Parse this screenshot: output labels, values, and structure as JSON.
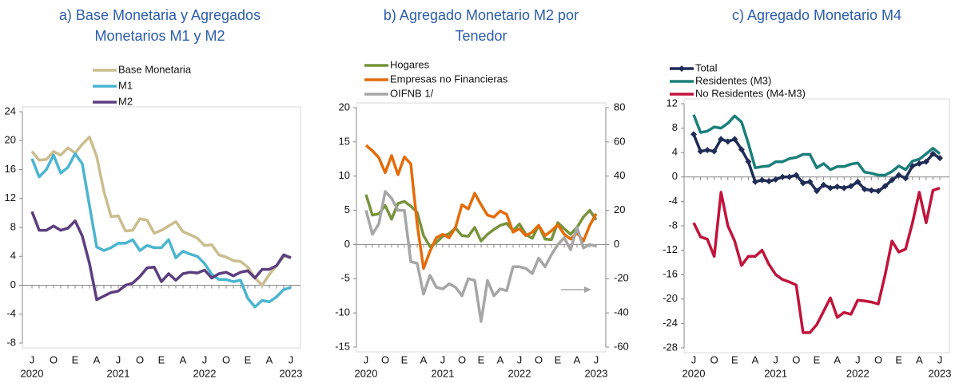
{
  "chart_data": [
    {
      "type": "line",
      "title": "a) Base Monetaria y Agregados Monetarios M1 y M2",
      "categories": [
        "J",
        null,
        null,
        "O",
        null,
        null,
        "E",
        null,
        null,
        "A",
        null,
        null,
        "J",
        null,
        null,
        "O",
        null,
        null,
        "E",
        null,
        null,
        "A",
        null,
        null,
        "J",
        null,
        null,
        "O",
        null,
        null,
        "E",
        null,
        null,
        "A",
        null,
        null,
        "J"
      ],
      "year_labels": [
        "2020",
        null,
        null,
        null,
        null,
        null,
        null,
        null,
        null,
        null,
        null,
        null,
        "2021",
        null,
        null,
        null,
        null,
        null,
        null,
        null,
        null,
        null,
        null,
        null,
        "2022",
        null,
        null,
        null,
        null,
        null,
        null,
        null,
        null,
        null,
        null,
        null,
        "2023"
      ],
      "ylim": [
        -8,
        24
      ],
      "yticks": [
        -8,
        -4,
        0,
        4,
        8,
        12,
        16,
        20,
        24
      ],
      "series": [
        {
          "name": "Base Monetaria",
          "color": "#cbbd8f",
          "values": [
            18.5,
            17.3,
            17.4,
            18.5,
            18,
            19,
            18.3,
            19.5,
            20.5,
            17.8,
            13,
            9.5,
            9.6,
            7.5,
            7.6,
            9.2,
            9,
            7.2,
            7.6,
            8.2,
            8.8,
            7.4,
            7,
            6.5,
            5.5,
            5.6,
            4.2,
            3.9,
            3.4,
            3.3,
            2.5,
            1,
            0,
            1.5,
            2.7,
            4,
            3.9
          ]
        },
        {
          "name": "M1",
          "color": "#4bb5d0",
          "values": [
            17.5,
            15,
            16,
            18,
            15.5,
            16.3,
            18.2,
            16.8,
            11,
            5.3,
            4.8,
            5.2,
            5.8,
            5.8,
            6.3,
            4.8,
            5.5,
            5.2,
            5.2,
            6.3,
            3.8,
            4.7,
            4.3,
            4,
            3,
            1.5,
            0.8,
            0.8,
            0.5,
            0.7,
            -1.8,
            -3,
            -2.1,
            -2.3,
            -1.6,
            -0.6,
            -0.3
          ]
        },
        {
          "name": "M2",
          "color": "#5c3e7e",
          "values": [
            10.2,
            7.6,
            7.6,
            8.2,
            7.6,
            7.9,
            8.9,
            6.8,
            3,
            -2,
            -1.5,
            -1,
            -0.8,
            0,
            0.3,
            1.2,
            2.4,
            2.5,
            0.5,
            1.6,
            0.7,
            1.6,
            1.8,
            1.7,
            2.1,
            1,
            1.6,
            1.8,
            1.3,
            1.8,
            2,
            1,
            2.2,
            2.2,
            2.7,
            4.2,
            3.8
          ]
        }
      ]
    },
    {
      "type": "line",
      "title": "b) Agregado Monetario M2 por Tenedor",
      "categories": [
        "J",
        null,
        null,
        "O",
        null,
        null,
        "E",
        null,
        null,
        "A",
        null,
        null,
        "J",
        null,
        null,
        "O",
        null,
        null,
        "E",
        null,
        null,
        "A",
        null,
        null,
        "J",
        null,
        null,
        "O",
        null,
        null,
        "E",
        null,
        null,
        "A",
        null,
        null,
        "J"
      ],
      "year_labels": [
        "2020",
        null,
        null,
        null,
        null,
        null,
        null,
        null,
        null,
        null,
        null,
        null,
        "2021",
        null,
        null,
        null,
        null,
        null,
        null,
        null,
        null,
        null,
        null,
        null,
        "2022",
        null,
        null,
        null,
        null,
        null,
        null,
        null,
        null,
        null,
        null,
        null,
        "2023"
      ],
      "ylim": [
        -15,
        20
      ],
      "yticks": [
        -15,
        -10,
        -5,
        0,
        5,
        10,
        15,
        20
      ],
      "y2lim": [
        -60,
        80
      ],
      "y2ticks": [
        -60,
        -40,
        -20,
        0,
        20,
        40,
        60,
        80
      ],
      "series": [
        {
          "name": "Hogares",
          "color": "#77933c",
          "values": [
            7.3,
            4.3,
            4.5,
            5.7,
            3.7,
            6,
            6.3,
            5.6,
            4.7,
            1.3,
            -0.3,
            0.3,
            1.2,
            1.6,
            2.4,
            1.3,
            1.2,
            2.5,
            0.5,
            1.5,
            2.2,
            2.8,
            3.1,
            2,
            3,
            1.5,
            0.9,
            2.8,
            0.8,
            0.7,
            3.2,
            2.3,
            1.5,
            2.5,
            4,
            5,
            3.6
          ]
        },
        {
          "name": "Empresas no Financieras",
          "color": "#e46c0a",
          "values": [
            14.5,
            13.7,
            12.7,
            10.5,
            13,
            10.2,
            12.8,
            11.8,
            3,
            -3.5,
            -1,
            1,
            1.5,
            1,
            2.5,
            5.8,
            5.2,
            7.5,
            5.8,
            4.3,
            4,
            4.9,
            4.4,
            1.8,
            2.3,
            1.3,
            1.8,
            2.8,
            1.3,
            2,
            2.9,
            1.5,
            0.8,
            1.7,
            0.5,
            2.8,
            4.5
          ]
        },
        {
          "name": "OIFNB 1/",
          "color": "#a6a6a6",
          "axis": "y2",
          "values": [
            20,
            6,
            12,
            31,
            27,
            20,
            20,
            -10,
            -11,
            -29,
            -18,
            -25,
            -26,
            -23,
            -25,
            -30,
            -20,
            -21,
            -45,
            -21,
            -30,
            -26,
            -27,
            -13,
            -13,
            -14,
            -17,
            -8,
            -13,
            -6,
            0,
            4,
            -3,
            10,
            -2,
            0,
            -1
          ]
        }
      ]
    },
    {
      "type": "line",
      "title": "c) Agregado Monetario M4",
      "categories": [
        "J",
        null,
        null,
        "O",
        null,
        null,
        "E",
        null,
        null,
        "A",
        null,
        null,
        "J",
        null,
        null,
        "O",
        null,
        null,
        "E",
        null,
        null,
        "A",
        null,
        null,
        "J",
        null,
        null,
        "O",
        null,
        null,
        "E",
        null,
        null,
        "A",
        null,
        null,
        "J"
      ],
      "year_labels": [
        "2020",
        null,
        null,
        null,
        null,
        null,
        null,
        null,
        null,
        null,
        null,
        null,
        "2021",
        null,
        null,
        null,
        null,
        null,
        null,
        null,
        null,
        null,
        null,
        null,
        "2022",
        null,
        null,
        null,
        null,
        null,
        null,
        null,
        null,
        null,
        null,
        null,
        "2023"
      ],
      "ylim": [
        -28,
        12
      ],
      "yticks": [
        -28,
        -24,
        -20,
        -16,
        -12,
        -8,
        -4,
        0,
        4,
        8,
        12
      ],
      "series": [
        {
          "name": "Total",
          "color": "#1f2d56",
          "marker": "diamond",
          "values": [
            7,
            4.2,
            4.4,
            4.2,
            6.2,
            5.8,
            6.2,
            4.5,
            2.5,
            -0.8,
            -0.5,
            -0.7,
            -0.4,
            0,
            0,
            0.3,
            -1,
            -0.8,
            -2.3,
            -1.3,
            -1.8,
            -1.6,
            -1.8,
            -1.5,
            -0.8,
            -2,
            -2.2,
            -2.3,
            -1.5,
            -0.5,
            0.3,
            -0.2,
            1.8,
            2.2,
            2.5,
            3.8,
            3.1
          ]
        },
        {
          "name": "Residentes (M3)",
          "color": "#1a7f7a",
          "values": [
            10.2,
            7.3,
            7.5,
            8.2,
            8,
            8.8,
            10,
            9,
            5.5,
            1.5,
            1.7,
            1.8,
            2.5,
            2.5,
            3,
            3.2,
            3.7,
            3.7,
            1.5,
            2.2,
            1.2,
            1.7,
            1.7,
            2.1,
            2.3,
            0.8,
            0.6,
            0.3,
            0.3,
            0.9,
            1.8,
            1.2,
            2.6,
            2.9,
            3.8,
            4.7,
            3.8
          ]
        },
        {
          "name": "No Residentes (M4-M3)",
          "color": "#c0143c",
          "values": [
            -7.5,
            -9.8,
            -10.2,
            -13,
            -2.5,
            -8,
            -10.5,
            -14.5,
            -13,
            -13,
            -12,
            -14.3,
            -16,
            -16.8,
            -17.2,
            -17.7,
            -25.5,
            -25.5,
            -24.2,
            -22,
            -19.8,
            -23,
            -22.2,
            -22.5,
            -20.2,
            -20.3,
            -20.5,
            -20.8,
            -16,
            -10.5,
            -12.3,
            -11.8,
            -7.5,
            -2.5,
            -7.5,
            -2.2,
            -1.8
          ]
        }
      ]
    }
  ]
}
